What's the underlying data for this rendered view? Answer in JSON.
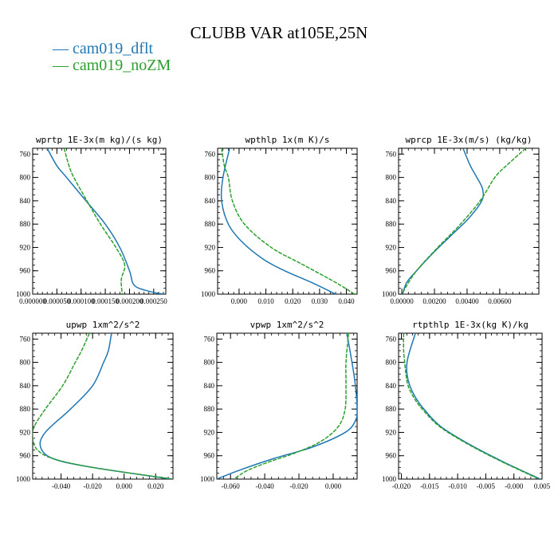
{
  "title": "CLUBB VAR at105E,25N",
  "colors": {
    "cam019_dflt": "#1f77b4",
    "cam019_noZM": "#2ca02c"
  },
  "legend": [
    {
      "label": "— cam019_dflt",
      "color": "#1f77b4"
    },
    {
      "label": "— cam019_noZM",
      "color": "#2ca02c"
    }
  ],
  "chart_data": [
    {
      "type": "line",
      "title": "wprtp  1E-3x(m kg)/(s kg)",
      "xlim": [
        0,
        0.000275
      ],
      "ylim": [
        750,
        1000
      ],
      "y_inverted": true,
      "xticks": [
        0,
        5e-05,
        0.0001,
        0.00015,
        0.0002,
        0.00025
      ],
      "xtick_labels": [
        "0.000000",
        "0.000050",
        "0.000100",
        "0.000150",
        "0.000200",
        "0.000250"
      ],
      "yticks": [
        760,
        800,
        840,
        880,
        920,
        960,
        1000
      ],
      "series": [
        {
          "name": "cam019_dflt",
          "y": [
            750,
            780,
            800,
            840,
            880,
            920,
            960,
            985,
            995,
            1000
          ],
          "x": [
            3e-05,
            5e-05,
            7e-05,
            0.00011,
            0.00015,
            0.00018,
            0.0002,
            0.00021,
            0.00024,
            0.00027
          ]
        },
        {
          "name": "cam019_noZM",
          "y": [
            750,
            780,
            800,
            840,
            880,
            920,
            950,
            975,
            1000
          ],
          "x": [
            6.5e-05,
            7.5e-05,
            8.5e-05,
            0.000112,
            0.00014,
            0.000172,
            0.00019,
            0.000183,
            0.000185
          ]
        }
      ]
    },
    {
      "type": "line",
      "title": "wpthlp  1x(m K)/s",
      "xlim": [
        -0.008,
        0.044
      ],
      "ylim": [
        750,
        1000
      ],
      "y_inverted": true,
      "xticks": [
        0.0,
        0.01,
        0.02,
        0.03,
        0.04
      ],
      "xtick_labels": [
        "0.000",
        "0.010",
        "0.020",
        "0.030",
        "0.040"
      ],
      "yticks": [
        760,
        800,
        840,
        880,
        920,
        960,
        1000
      ],
      "series": [
        {
          "name": "cam019_dflt",
          "y": [
            750,
            800,
            840,
            880,
            910,
            940,
            960,
            980,
            1000
          ],
          "x": [
            -0.0035,
            -0.006,
            -0.0065,
            -0.004,
            0.001,
            0.009,
            0.017,
            0.027,
            0.036
          ]
        },
        {
          "name": "cam019_noZM",
          "y": [
            750,
            780,
            800,
            840,
            880,
            920,
            950,
            980,
            1000
          ],
          "x": [
            -0.0065,
            -0.0055,
            -0.004,
            -0.0025,
            0.002,
            0.012,
            0.024,
            0.036,
            0.043
          ]
        }
      ]
    },
    {
      "type": "line",
      "title": "wprcp  1E-3x(m/s) (kg/kg)",
      "xlim": [
        -0.0002,
        0.0084
      ],
      "ylim": [
        750,
        1000
      ],
      "y_inverted": true,
      "xticks": [
        0.0,
        0.002,
        0.004,
        0.006
      ],
      "xtick_labels": [
        "0.00000",
        "0.00200",
        "0.00400",
        "0.00600"
      ],
      "yticks": [
        760,
        800,
        840,
        880,
        920,
        960,
        1000
      ],
      "series": [
        {
          "name": "cam019_dflt",
          "y": [
            750,
            780,
            800,
            820,
            840,
            870,
            900,
            930,
            960,
            980,
            1000
          ],
          "x": [
            0.00375,
            0.0042,
            0.0046,
            0.00495,
            0.0049,
            0.0041,
            0.003,
            0.0019,
            0.0009,
            0.0003,
            5e-05
          ]
        },
        {
          "name": "cam019_noZM",
          "y": [
            750,
            780,
            800,
            840,
            880,
            920,
            960,
            990,
            1000
          ],
          "x": [
            0.0076,
            0.0064,
            0.0057,
            0.0048,
            0.0036,
            0.0022,
            0.0009,
            0.0002,
            5e-05
          ]
        }
      ]
    },
    {
      "type": "line",
      "title": "upwp  1xm^2/s^2",
      "xlim": [
        -0.058,
        0.031
      ],
      "ylim": [
        750,
        1000
      ],
      "y_inverted": true,
      "xticks": [
        -0.04,
        -0.02,
        0.0,
        0.02
      ],
      "xtick_labels": [
        "-0.040",
        "-0.020",
        "0.000",
        "0.020"
      ],
      "yticks": [
        760,
        800,
        840,
        880,
        920,
        960,
        1000
      ],
      "series": [
        {
          "name": "cam019_dflt",
          "y": [
            750,
            780,
            800,
            840,
            880,
            920,
            945,
            965,
            980,
            1000
          ],
          "x": [
            -0.008,
            -0.01,
            -0.013,
            -0.02,
            -0.034,
            -0.05,
            -0.053,
            -0.045,
            -0.02,
            0.03
          ]
        },
        {
          "name": "cam019_noZM",
          "y": [
            750,
            780,
            800,
            840,
            880,
            910,
            930,
            950,
            965,
            980,
            1000
          ],
          "x": [
            -0.022,
            -0.027,
            -0.031,
            -0.039,
            -0.05,
            -0.057,
            -0.058,
            -0.055,
            -0.045,
            -0.02,
            0.031
          ]
        }
      ]
    },
    {
      "type": "line",
      "title": "vpwp  1xm^2/s^2",
      "xlim": [
        -0.068,
        0.014
      ],
      "ylim": [
        750,
        1000
      ],
      "y_inverted": true,
      "xticks": [
        -0.06,
        -0.04,
        -0.02,
        0.0
      ],
      "xtick_labels": [
        "-0.060",
        "-0.040",
        "-0.020",
        "0.000"
      ],
      "yticks": [
        760,
        800,
        840,
        880,
        920,
        960,
        1000
      ],
      "series": [
        {
          "name": "cam019_dflt",
          "y": [
            750,
            800,
            840,
            880,
            900,
            920,
            945,
            965,
            985,
            1000
          ],
          "x": [
            0.008,
            0.011,
            0.013,
            0.014,
            0.013,
            0.007,
            -0.012,
            -0.035,
            -0.055,
            -0.068
          ]
        },
        {
          "name": "cam019_noZM",
          "y": [
            750,
            800,
            840,
            880,
            910,
            935,
            955,
            970,
            985,
            1000
          ],
          "x": [
            0.009,
            0.0075,
            0.0075,
            0.007,
            0.003,
            -0.007,
            -0.022,
            -0.037,
            -0.05,
            -0.058
          ]
        }
      ]
    },
    {
      "type": "line",
      "title": "rtpthlp  1E-3x(kg K)/kg",
      "xlim": [
        -0.0205,
        0.005
      ],
      "ylim": [
        750,
        1000
      ],
      "y_inverted": true,
      "xticks": [
        -0.02,
        -0.015,
        -0.01,
        -0.005,
        0.0,
        0.005
      ],
      "xtick_labels": [
        "-0.020",
        "-0.015",
        "-0.010",
        "-0.005",
        "-0.000",
        "0.005"
      ],
      "yticks": [
        760,
        800,
        840,
        880,
        920,
        960,
        1000
      ],
      "series": [
        {
          "name": "cam019_dflt",
          "y": [
            750,
            780,
            800,
            820,
            840,
            860,
            880,
            910,
            940,
            970,
            1000
          ],
          "x": [
            -0.0175,
            -0.0185,
            -0.019,
            -0.019,
            -0.0185,
            -0.0175,
            -0.016,
            -0.013,
            -0.008,
            -0.002,
            0.0047
          ]
        },
        {
          "name": "cam019_noZM",
          "y": [
            750,
            780,
            800,
            820,
            840,
            860,
            880,
            910,
            940,
            970,
            1000
          ],
          "x": [
            -0.0196,
            -0.0196,
            -0.0194,
            -0.0192,
            -0.0188,
            -0.0178,
            -0.0163,
            -0.0132,
            -0.0082,
            -0.0022,
            0.0045
          ]
        }
      ]
    }
  ]
}
